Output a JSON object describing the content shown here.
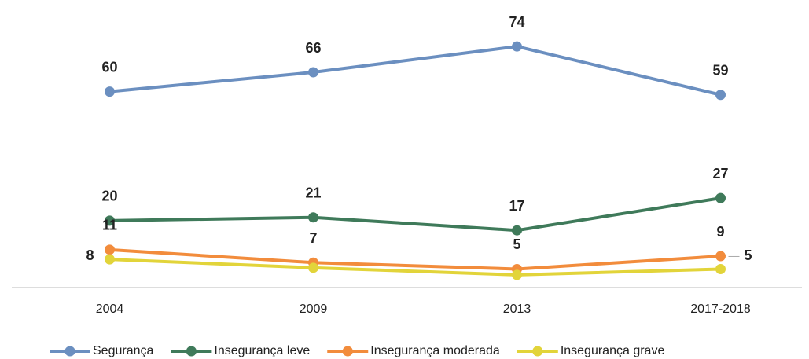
{
  "chart_data": {
    "type": "line",
    "categories": [
      "2004",
      "2009",
      "2013",
      "2017-2018"
    ],
    "series": [
      {
        "name": "Segurança",
        "color": "#6b8fc0",
        "values": [
          60,
          66,
          74,
          59
        ]
      },
      {
        "name": "Insegurança leve",
        "color": "#3f7a5a",
        "values": [
          20,
          21,
          17,
          27
        ]
      },
      {
        "name": "Insegurança moderada",
        "color": "#f28c3c",
        "values": [
          11,
          7,
          5,
          9
        ]
      },
      {
        "name": "Insegurança grave",
        "color": "#e2d43a",
        "values": [
          8,
          5.4,
          3.2,
          5
        ],
        "value_labels": [
          "8",
          null,
          null,
          "5"
        ]
      }
    ],
    "ylim": [
      0,
      85
    ],
    "legend": "bottom"
  }
}
